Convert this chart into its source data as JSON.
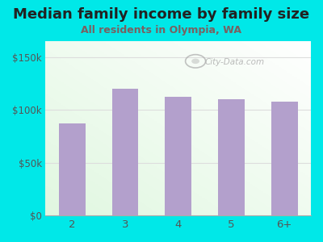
{
  "title": "Median family income by family size",
  "subtitle": "All residents in Olympia, WA",
  "categories": [
    "2",
    "3",
    "4",
    "5",
    "6+"
  ],
  "values": [
    87000,
    120000,
    112000,
    110000,
    108000
  ],
  "bar_color": "#b3a0cc",
  "background_color": "#00e8e8",
  "title_color": "#222222",
  "subtitle_color": "#7a6060",
  "ytick_color": "#555555",
  "xtick_color": "#555555",
  "yticks": [
    0,
    50000,
    100000,
    150000
  ],
  "ytick_labels": [
    "$0",
    "$50k",
    "$100k",
    "$150k"
  ],
  "ylim": [
    0,
    165000
  ],
  "title_fontsize": 13,
  "subtitle_fontsize": 9,
  "watermark_text": "City-Data.com",
  "grid_color": "#dddddd",
  "bar_width": 0.5
}
